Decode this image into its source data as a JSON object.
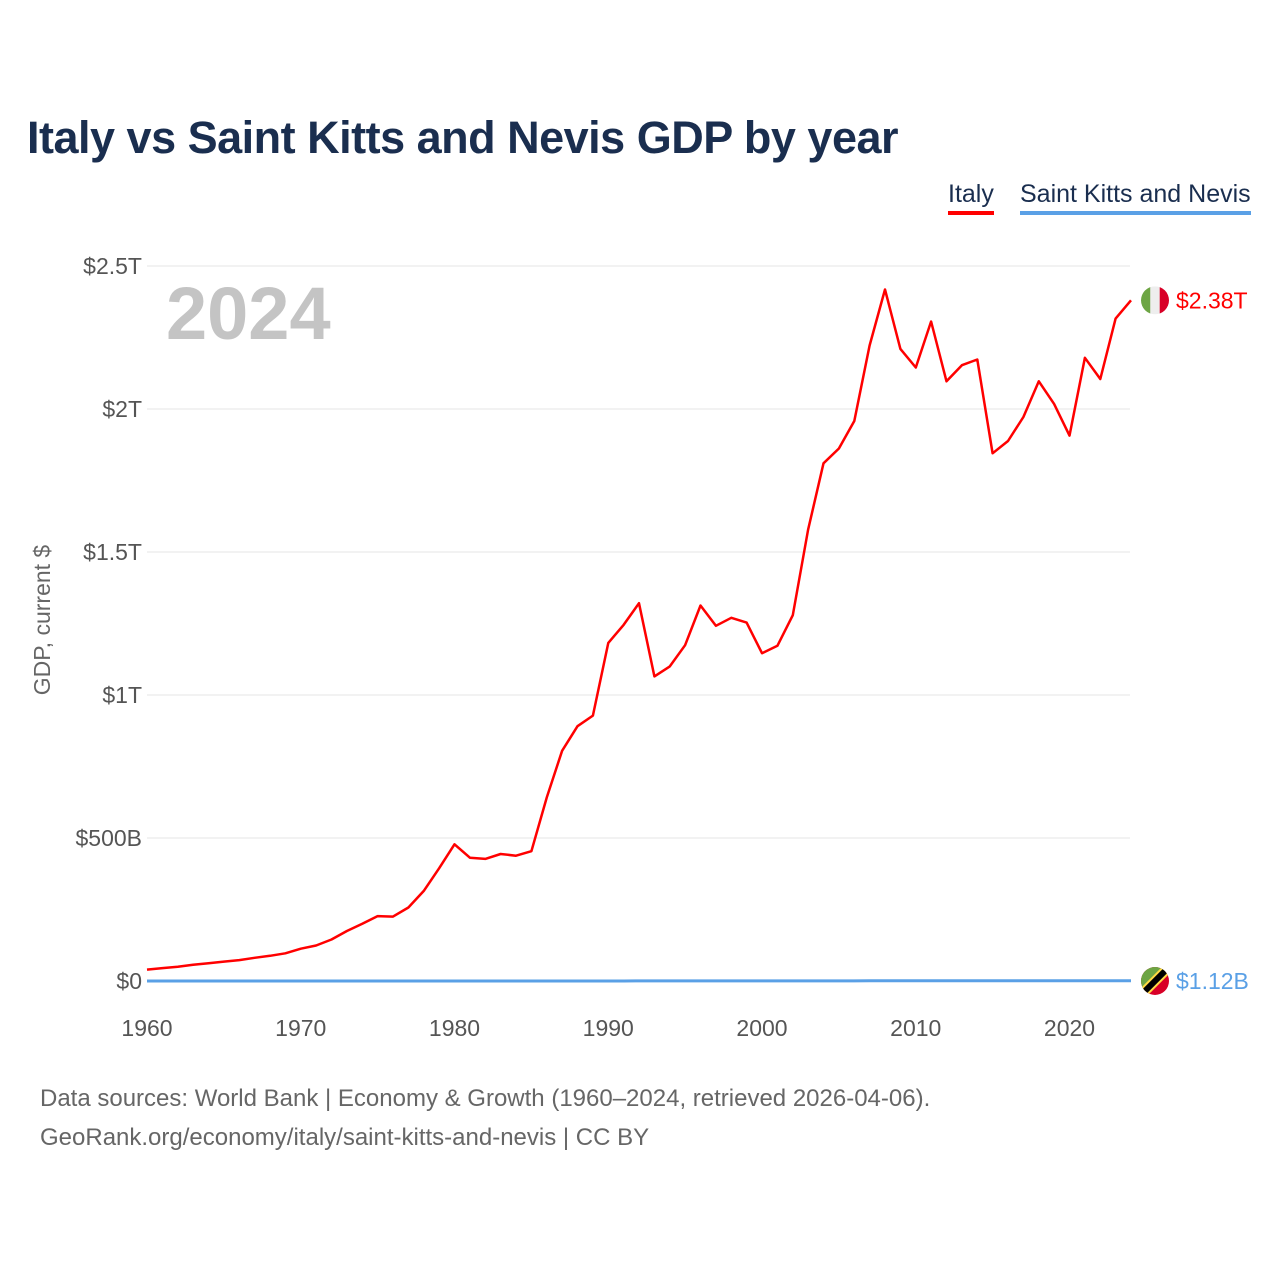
{
  "chart_data": {
    "type": "line",
    "title": "Italy vs Saint Kitts and Nevis GDP by year",
    "xlabel": "",
    "ylabel": "GDP, current $",
    "year_label": "2024",
    "xlim": [
      1960,
      2024
    ],
    "ylim": [
      0,
      2.5
    ],
    "y_unit": "trillion USD",
    "x_ticks": [
      "1960",
      "1970",
      "1980",
      "1990",
      "2000",
      "2010",
      "2020"
    ],
    "y_ticks": [
      {
        "value": 0,
        "label": "$0"
      },
      {
        "value": 0.5,
        "label": "$500B"
      },
      {
        "value": 1,
        "label": "$1T"
      },
      {
        "value": 1.5,
        "label": "$1.5T"
      },
      {
        "value": 2,
        "label": "$2T"
      },
      {
        "value": 2.5,
        "label": "$2.5T"
      }
    ],
    "grid": true,
    "legend_position": "top-right",
    "x": [
      1960,
      1961,
      1962,
      1963,
      1964,
      1965,
      1966,
      1967,
      1968,
      1969,
      1970,
      1971,
      1972,
      1973,
      1974,
      1975,
      1976,
      1977,
      1978,
      1979,
      1980,
      1981,
      1982,
      1983,
      1984,
      1985,
      1986,
      1987,
      1988,
      1989,
      1990,
      1991,
      1992,
      1993,
      1994,
      1995,
      1996,
      1997,
      1998,
      1999,
      2000,
      2001,
      2002,
      2003,
      2004,
      2005,
      2006,
      2007,
      2008,
      2009,
      2010,
      2011,
      2012,
      2013,
      2014,
      2015,
      2016,
      2017,
      2018,
      2019,
      2020,
      2021,
      2022,
      2023,
      2024
    ],
    "series": [
      {
        "name": "Italy",
        "color": "#ff0000",
        "end_label": "$2.38T",
        "flag": "italy-flag",
        "values": [
          0.04,
          0.045,
          0.05,
          0.057,
          0.062,
          0.068,
          0.073,
          0.081,
          0.088,
          0.097,
          0.113,
          0.124,
          0.145,
          0.175,
          0.2,
          0.227,
          0.225,
          0.257,
          0.315,
          0.394,
          0.478,
          0.431,
          0.427,
          0.444,
          0.438,
          0.454,
          0.642,
          0.805,
          0.891,
          0.928,
          1.182,
          1.245,
          1.321,
          1.065,
          1.1,
          1.174,
          1.313,
          1.242,
          1.27,
          1.253,
          1.146,
          1.172,
          1.279,
          1.578,
          1.81,
          1.862,
          1.958,
          2.222,
          2.418,
          2.21,
          2.145,
          2.306,
          2.097,
          2.153,
          2.173,
          1.845,
          1.888,
          1.972,
          2.097,
          2.018,
          1.907,
          2.179,
          2.105,
          2.316,
          2.38
        ]
      },
      {
        "name": "Saint Kitts and Nevis",
        "color": "#5aa0e6",
        "end_label": "$1.12B",
        "flag": "saint-kitts-and-nevis-flag",
        "values": [
          1e-05,
          1e-05,
          1e-05,
          1e-05,
          1e-05,
          1e-05,
          1e-05,
          1e-05,
          1e-05,
          1e-05,
          2e-05,
          2e-05,
          2e-05,
          2e-05,
          3e-05,
          3e-05,
          4e-05,
          4e-05,
          4e-05,
          5e-05,
          6e-05,
          6e-05,
          7e-05,
          7e-05,
          8e-05,
          8e-05,
          0.0001,
          0.00012,
          0.00014,
          0.00016,
          0.00016,
          0.00017,
          0.00018,
          0.0002,
          0.00022,
          0.00024,
          0.00026,
          0.00029,
          0.00031,
          0.00032,
          0.00034,
          0.00037,
          0.00038,
          0.00038,
          0.00041,
          0.00045,
          0.00052,
          0.00058,
          0.00065,
          0.00066,
          0.00068,
          0.00075,
          0.00075,
          0.00081,
          0.00087,
          0.00091,
          0.00095,
          0.00097,
          0.00102,
          0.00106,
          0.00089,
          0.00096,
          0.00103,
          0.00108,
          0.00112
        ]
      }
    ]
  },
  "footer": {
    "line1": "Data sources: World Bank | Economy & Growth (1960–2024, retrieved 2026-04-06).",
    "line2": "GeoRank.org/economy/italy/saint-kitts-and-nevis | CC BY"
  }
}
